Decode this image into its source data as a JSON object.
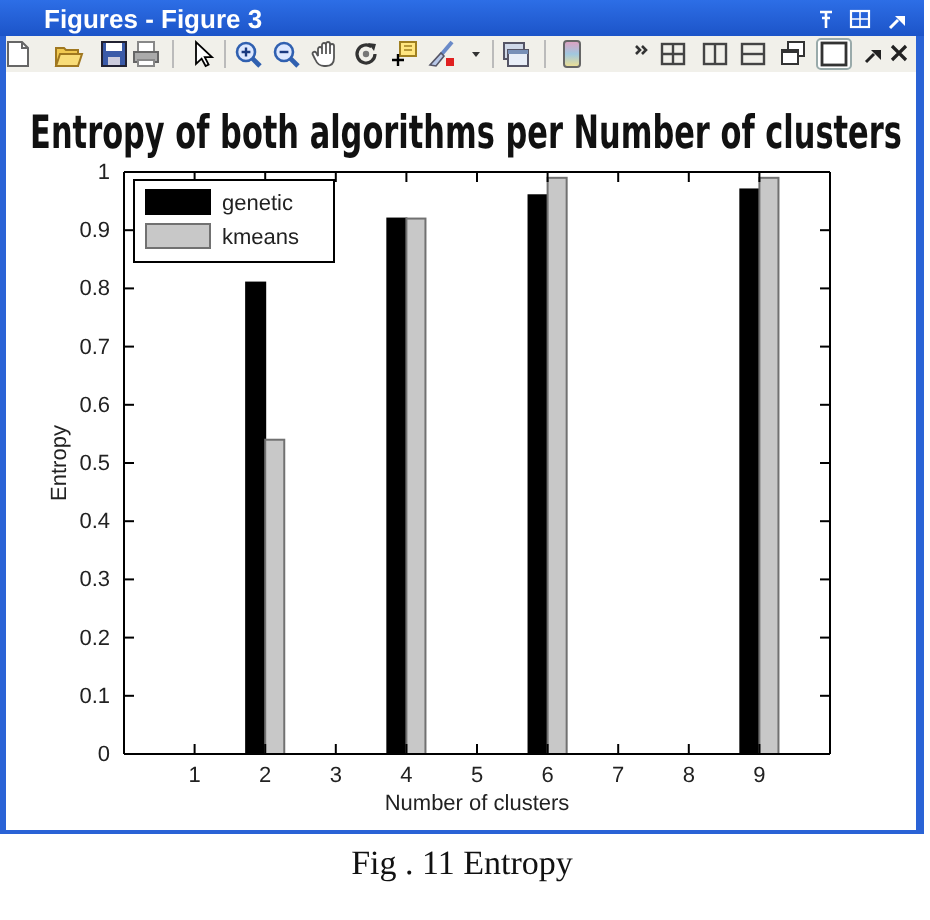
{
  "chart_data": {
    "type": "bar",
    "title": "Entropy of both algorithms per Number of clusters",
    "xlabel": "Number of clusters",
    "ylabel": "Entropy",
    "x": [
      2,
      4,
      6,
      9
    ],
    "xlim": [
      0,
      10
    ],
    "xticks": [
      1,
      2,
      3,
      4,
      5,
      6,
      7,
      8,
      9
    ],
    "ylim": [
      0,
      1
    ],
    "yticks": [
      0,
      0.1,
      0.2,
      0.3,
      0.4,
      0.5,
      0.6,
      0.7,
      0.8,
      0.9,
      1
    ],
    "series": [
      {
        "name": "genetic",
        "color": "#000000",
        "values": [
          0.81,
          0.92,
          0.96,
          0.97
        ]
      },
      {
        "name": "kmeans",
        "color": "#c8c8c8",
        "values": [
          0.54,
          0.92,
          0.99,
          0.99
        ]
      }
    ],
    "legend": "top left",
    "annotations": [
      "Figures - Figure 3",
      "Fig . 11 Entropy"
    ]
  }
}
